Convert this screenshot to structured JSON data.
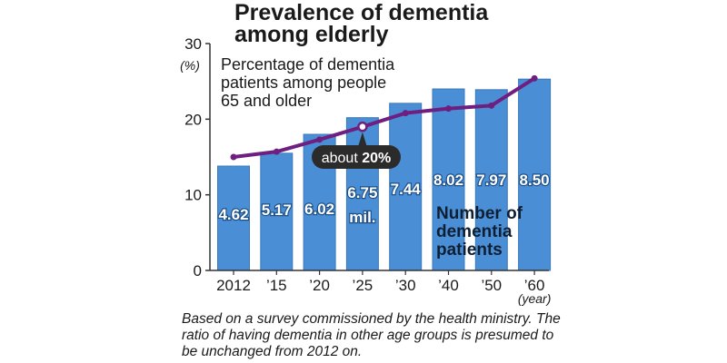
{
  "title_lines": [
    "Prevalence of dementia",
    "among elderly"
  ],
  "note": "Based on a survey commissioned by the health ministry. The ratio of having dementia in other age groups is presumed to be unchanged from 2012 on.",
  "colors": {
    "bar": "#4a8fd6",
    "bar_edge": "#3a78bd",
    "line": "#6e1f7f",
    "callout_bg": "#2b2b2b",
    "axis": "#333333"
  },
  "chart_data": {
    "type": "bar",
    "categories": [
      "2012",
      "’15",
      "’20",
      "’25",
      "’30",
      "’40",
      "’50",
      "’60"
    ],
    "x_unit": "(year)",
    "y_unit": "(%)",
    "ylim": [
      0,
      30
    ],
    "yticks": [
      0,
      10,
      20,
      30
    ],
    "grid": false,
    "series": [
      {
        "name": "Number of dementia patients",
        "type": "bar",
        "values": [
          13.8,
          15.5,
          18.0,
          20.2,
          22.1,
          24.0,
          23.9,
          25.3
        ],
        "data_labels": [
          "4.62",
          "5.17",
          "6.02",
          "6.75",
          "7.44",
          "8.02",
          "7.97",
          "8.50"
        ],
        "unit_label": "mil."
      },
      {
        "name": "Percentage of dementia patients among people 65 and older",
        "type": "line",
        "values": [
          15.0,
          15.7,
          17.3,
          19.0,
          20.8,
          21.4,
          21.8,
          25.4
        ]
      }
    ],
    "line_caption_lines": [
      "Percentage of dementia",
      "patients among people",
      "65 and older"
    ],
    "bar_caption_lines": [
      "Number of",
      "dementia",
      "patients"
    ],
    "callout": {
      "category": "’25",
      "prefix": "about ",
      "emphasis": "20%"
    }
  }
}
